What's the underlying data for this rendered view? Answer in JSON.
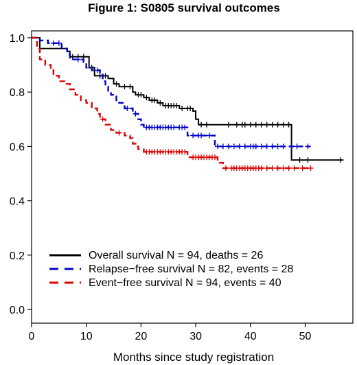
{
  "chart_data": {
    "type": "line",
    "title": "Figure 1: S0805 survival outcomes",
    "xlabel": "Months since study registration",
    "ylabel": "",
    "xlim": [
      0,
      58
    ],
    "ylim": [
      0,
      1.0
    ],
    "x_ticks": [
      0,
      10,
      20,
      30,
      40,
      50
    ],
    "y_ticks": [
      "0.0",
      "0.2",
      "0.4",
      "0.6",
      "0.8",
      "1.0"
    ],
    "grid": false,
    "legend_position": "bottom-left",
    "series": [
      {
        "name": "Overall survival N = 94, deaths = 26",
        "color": "#000000",
        "dash": "solid",
        "steps": [
          [
            0,
            1.0
          ],
          [
            1.5,
            0.96
          ],
          [
            6.5,
            0.95
          ],
          [
            7,
            0.93
          ],
          [
            10.5,
            0.89
          ],
          [
            11.5,
            0.86
          ],
          [
            14,
            0.85
          ],
          [
            15,
            0.83
          ],
          [
            16,
            0.82
          ],
          [
            18.5,
            0.8
          ],
          [
            19,
            0.79
          ],
          [
            20.5,
            0.78
          ],
          [
            21.5,
            0.77
          ],
          [
            23,
            0.76
          ],
          [
            24,
            0.75
          ],
          [
            27,
            0.74
          ],
          [
            29.5,
            0.73
          ],
          [
            30,
            0.7
          ],
          [
            30.5,
            0.68
          ],
          [
            47.5,
            0.55
          ],
          [
            57,
            0.55
          ]
        ],
        "censor": [
          7.5,
          8.5,
          9.5,
          11,
          12.5,
          13.5,
          15.5,
          17,
          18,
          19.5,
          20,
          21,
          22,
          22.5,
          23.5,
          24.5,
          25,
          25.5,
          26,
          26.5,
          27.5,
          28.5,
          29,
          31,
          32,
          36,
          37.5,
          38.5,
          39,
          40,
          41,
          42,
          43,
          44,
          45,
          46,
          47,
          49,
          50.5,
          56.5
        ]
      },
      {
        "name": "Relapse−free survival N = 82, events = 28",
        "color": "#0000cc",
        "dash": "dashed",
        "steps": [
          [
            0,
            1.0
          ],
          [
            1.5,
            0.99
          ],
          [
            3,
            0.98
          ],
          [
            5.5,
            0.96
          ],
          [
            6.5,
            0.94
          ],
          [
            7,
            0.92
          ],
          [
            9.5,
            0.91
          ],
          [
            10,
            0.89
          ],
          [
            11,
            0.88
          ],
          [
            12.5,
            0.87
          ],
          [
            13,
            0.84
          ],
          [
            13.5,
            0.82
          ],
          [
            14,
            0.8
          ],
          [
            14.5,
            0.79
          ],
          [
            15.5,
            0.77
          ],
          [
            16,
            0.76
          ],
          [
            17,
            0.74
          ],
          [
            18.5,
            0.72
          ],
          [
            19.5,
            0.7
          ],
          [
            20,
            0.68
          ],
          [
            20.5,
            0.67
          ],
          [
            28.5,
            0.64
          ],
          [
            33.5,
            0.6
          ],
          [
            51,
            0.6
          ]
        ],
        "censor": [
          4,
          5,
          8.5,
          12,
          17.5,
          19,
          21,
          21.5,
          22,
          22.5,
          23,
          23.5,
          24,
          24.5,
          25,
          25.5,
          26,
          27,
          27.5,
          28,
          29.5,
          30.5,
          31,
          32.5,
          34,
          35,
          36,
          37,
          38,
          39,
          40,
          40.5,
          41,
          42,
          43,
          44,
          45,
          46,
          47.5,
          48.5,
          50.5
        ]
      },
      {
        "name": "Event−free survival N = 94, events = 40",
        "color": "#dd0000",
        "dash": "dashed",
        "steps": [
          [
            0,
            1.0
          ],
          [
            1,
            0.96
          ],
          [
            1.5,
            0.92
          ],
          [
            2.5,
            0.9
          ],
          [
            3.5,
            0.88
          ],
          [
            4,
            0.86
          ],
          [
            5,
            0.84
          ],
          [
            6,
            0.83
          ],
          [
            7,
            0.81
          ],
          [
            8,
            0.79
          ],
          [
            9,
            0.77
          ],
          [
            10,
            0.76
          ],
          [
            11,
            0.74
          ],
          [
            12,
            0.72
          ],
          [
            12.5,
            0.7
          ],
          [
            13.5,
            0.68
          ],
          [
            14.5,
            0.66
          ],
          [
            15.5,
            0.65
          ],
          [
            17,
            0.64
          ],
          [
            18,
            0.63
          ],
          [
            18.5,
            0.61
          ],
          [
            19,
            0.6
          ],
          [
            19.5,
            0.59
          ],
          [
            20.5,
            0.58
          ],
          [
            28.5,
            0.56
          ],
          [
            34,
            0.54
          ],
          [
            35,
            0.52
          ],
          [
            51,
            0.52
          ]
        ],
        "censor": [
          13,
          16,
          21,
          21.5,
          22,
          22.5,
          23,
          23.5,
          24,
          24.5,
          25,
          25.5,
          26,
          26.5,
          27,
          27.5,
          28,
          29.5,
          30,
          30.5,
          31,
          31.5,
          32,
          32.5,
          33,
          33.5,
          35.5,
          36.5,
          37,
          37.5,
          38,
          38.5,
          39,
          39.5,
          40,
          40.5,
          41,
          41.5,
          42,
          43,
          44,
          45,
          46,
          47,
          48,
          49.5,
          51
        ]
      }
    ]
  }
}
